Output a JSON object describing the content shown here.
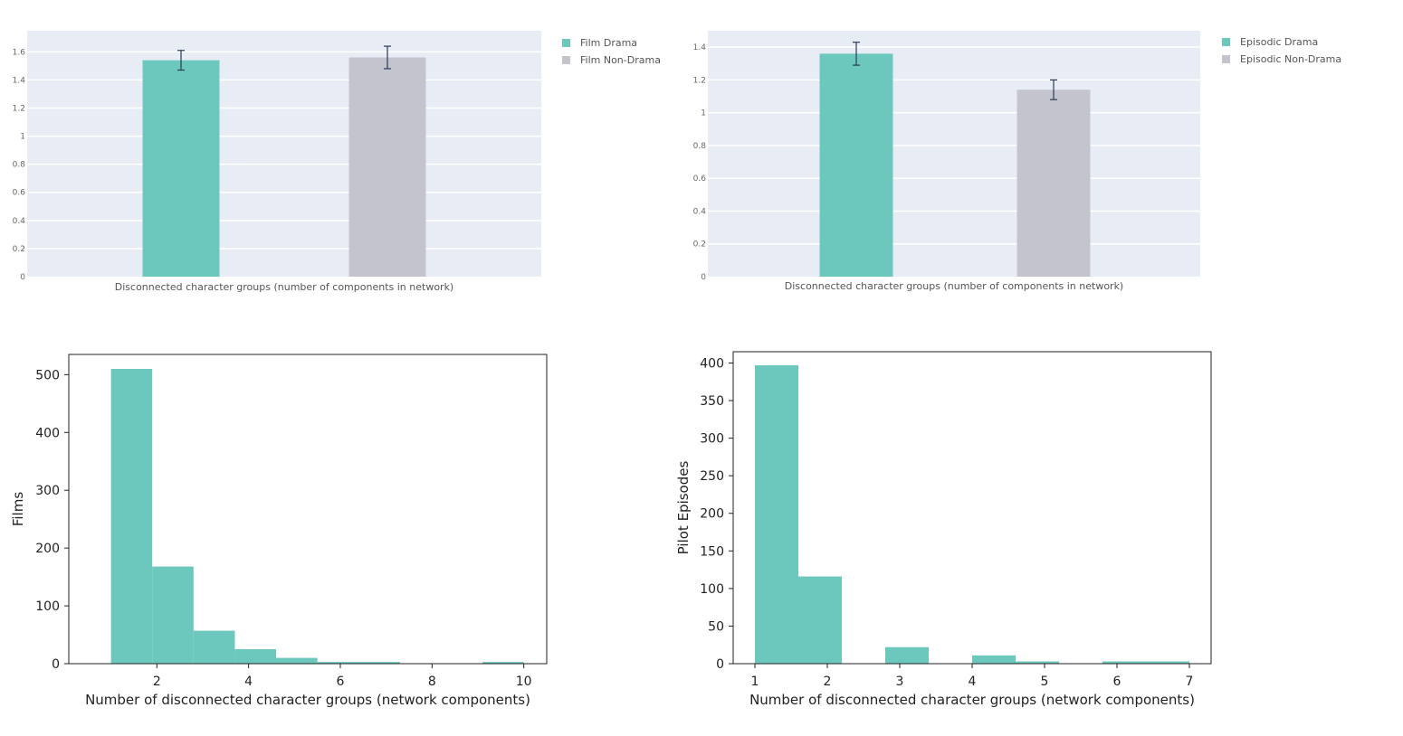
{
  "chart_data": [
    {
      "type": "bar",
      "categories": [
        "Film Drama",
        "Film Non-Drama"
      ],
      "values": [
        1.54,
        1.56
      ],
      "errors": [
        0.07,
        0.08
      ],
      "xlabel": "Disconnected character groups (number of components in network)",
      "ylabel": "",
      "ylim": [
        0,
        1.75
      ],
      "yticks": [
        0,
        0.2,
        0.4,
        0.6,
        0.8,
        1,
        1.2,
        1.4,
        1.6
      ],
      "ytick_labels": [
        "0",
        "0.2",
        "0.4",
        "0.6",
        "0.8",
        "1",
        "1.2",
        "1.4",
        "1.6"
      ],
      "grid": true,
      "legend": [
        {
          "name": "Film Drama",
          "color": "#6cc8bd"
        },
        {
          "name": "Film Non-Drama",
          "color": "#c4c4cf"
        }
      ],
      "legend_position": "outside-right",
      "colors": [
        "#6cc8bd",
        "#c4c4cf"
      ],
      "background": "#e7ecf5"
    },
    {
      "type": "bar",
      "categories": [
        "Episodic Drama",
        "Episodic Non-Drama"
      ],
      "values": [
        1.36,
        1.14
      ],
      "errors": [
        0.07,
        0.06
      ],
      "xlabel": "Disconnected character groups (number of components in network)",
      "ylabel": "",
      "ylim": [
        0,
        1.5
      ],
      "yticks": [
        0,
        0.2,
        0.4,
        0.6,
        0.8,
        1,
        1.2,
        1.4
      ],
      "ytick_labels": [
        "0",
        "0.2",
        "0.4",
        "0.6",
        "0.8",
        "1",
        "1.2",
        "1.4"
      ],
      "grid": true,
      "legend": [
        {
          "name": "Episodic Drama",
          "color": "#6cc8bd"
        },
        {
          "name": "Episodic Non-Drama",
          "color": "#c4c4cf"
        }
      ],
      "legend_position": "outside-right",
      "colors": [
        "#6cc8bd",
        "#c4c4cf"
      ],
      "background": "#e7ecf5"
    },
    {
      "type": "bar",
      "subtype": "histogram",
      "bin_edges": [
        1,
        1.9,
        2.8,
        3.7,
        4.6,
        5.5,
        6.4,
        7.3,
        8.2,
        9.1,
        10
      ],
      "values": [
        510,
        168,
        57,
        25,
        10,
        3,
        3,
        0,
        0,
        3
      ],
      "xlabel": "Number of disconnected character groups (network components)",
      "ylabel": "Films",
      "xlim": [
        0.08,
        10.5
      ],
      "ylim": [
        0,
        535
      ],
      "xticks": [
        2,
        4,
        6,
        8,
        10
      ],
      "yticks": [
        0,
        100,
        200,
        300,
        400,
        500
      ],
      "grid": false,
      "color": "#6cc8bd"
    },
    {
      "type": "bar",
      "subtype": "histogram",
      "bin_edges": [
        1,
        1.6,
        2.2,
        2.8,
        3.4,
        4,
        4.6,
        5.2,
        5.8,
        6.4,
        7
      ],
      "values": [
        397,
        116,
        0,
        22,
        0,
        11,
        3,
        0,
        3,
        3
      ],
      "xlabel": "Number of disconnected character groups (network components)",
      "ylabel": "Pilot Episodes",
      "xlim": [
        0.7,
        7.3
      ],
      "ylim": [
        0,
        415
      ],
      "xticks": [
        1,
        2,
        3,
        4,
        5,
        6,
        7
      ],
      "yticks": [
        0,
        50,
        100,
        150,
        200,
        250,
        300,
        350,
        400
      ],
      "grid": false,
      "color": "#6cc8bd"
    }
  ]
}
